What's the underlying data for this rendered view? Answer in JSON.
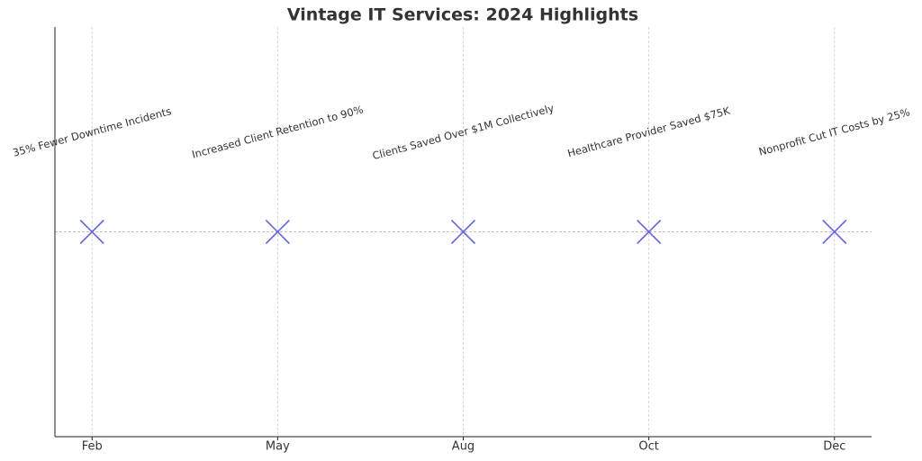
{
  "chart_data": {
    "type": "scatter",
    "title": "Vintage IT Services: 2024 Highlights",
    "categories": [
      "Feb",
      "May",
      "Aug",
      "Oct",
      "Dec"
    ],
    "values": [
      0,
      0,
      0,
      0,
      0
    ],
    "annotations": [
      "35% Fewer Downtime Incidents",
      "Increased Client Retention to 90%",
      "Clients Saved Over $1M Collectively",
      "Healthcare Provider Saved $75K",
      "Nonprofit Cut IT Costs by 25%"
    ],
    "color": "#6464ee",
    "marker": "x",
    "ylim": [
      -1,
      1
    ],
    "grid": true
  }
}
